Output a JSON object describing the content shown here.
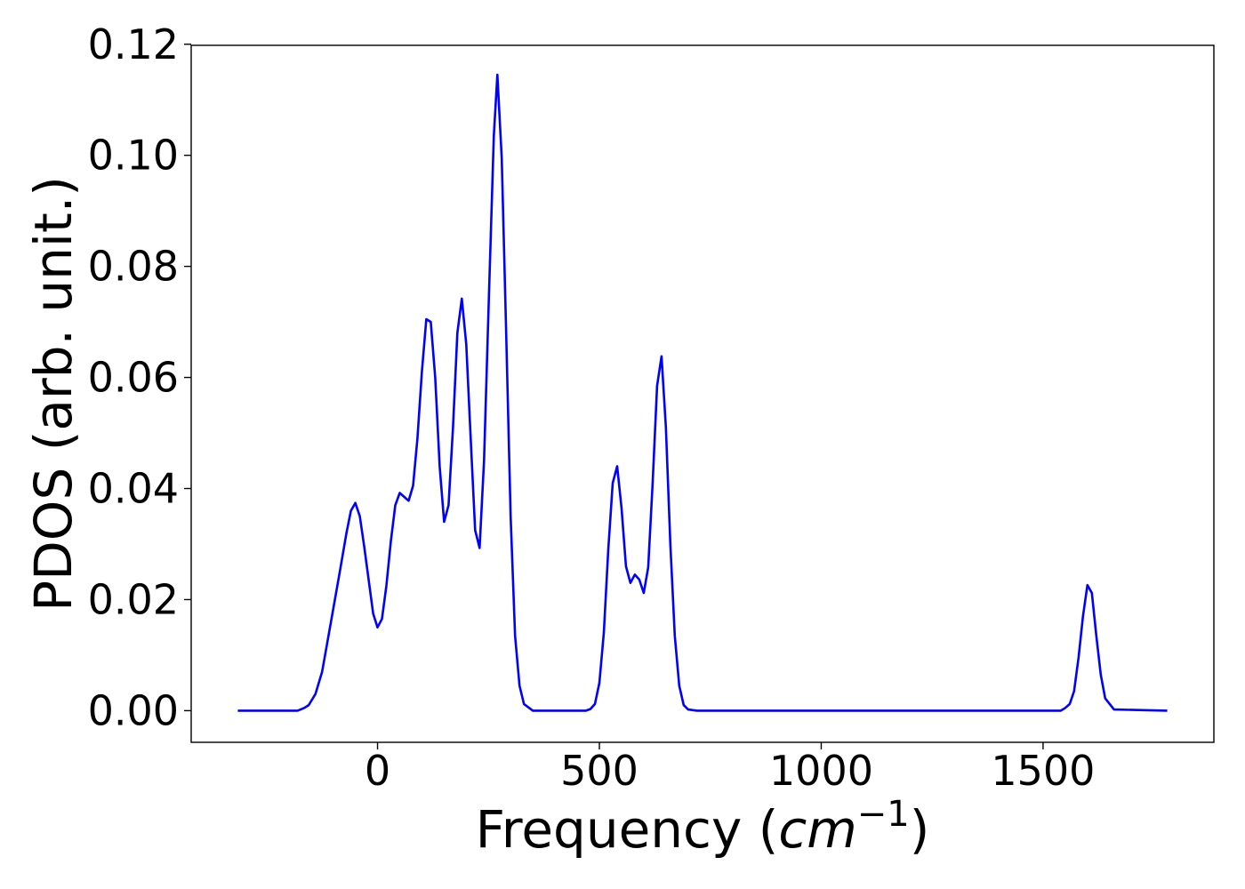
{
  "chart_data": {
    "type": "line",
    "title": "",
    "xlabel_main": "Frequency (",
    "xlabel_unit": "cm",
    "xlabel_exponent": "−1",
    "xlabel_close": ")",
    "ylabel": "PDOS (arb. unit.)",
    "xlim": [
      -420,
      1885
    ],
    "ylim": [
      -0.0057,
      0.1198
    ],
    "xticks": [
      0,
      500,
      1000,
      1500
    ],
    "xtick_labels": [
      "0",
      "500",
      "1000",
      "1500"
    ],
    "yticks": [
      0.0,
      0.02,
      0.04,
      0.06,
      0.08,
      0.1,
      0.12
    ],
    "ytick_labels": [
      "0.00",
      "0.02",
      "0.04",
      "0.06",
      "0.08",
      "0.10",
      "0.12"
    ],
    "grid": false,
    "line_color": "#0000ff",
    "series": [
      {
        "x": [
          -315,
          -180,
          -165,
          -155,
          -140,
          -125,
          -105,
          -85,
          -70,
          -60,
          -50,
          -40,
          -30,
          -20,
          -10,
          0,
          10,
          20,
          30,
          40,
          50,
          60,
          70,
          80,
          90,
          100,
          110,
          120,
          130,
          140,
          150,
          160,
          170,
          180,
          190,
          200,
          210,
          220,
          230,
          240,
          250,
          262,
          270,
          280,
          290,
          300,
          310,
          320,
          330,
          350,
          470,
          480,
          490,
          500,
          510,
          520,
          530,
          540,
          550,
          560,
          570,
          580,
          590,
          600,
          610,
          620,
          630,
          640,
          650,
          660,
          670,
          680,
          690,
          700,
          720,
          1540,
          1550,
          1560,
          1570,
          1580,
          1590,
          1600,
          1610,
          1620,
          1630,
          1640,
          1660,
          1780
        ],
        "y": [
          0.0,
          0.0,
          0.0005,
          0.001,
          0.003,
          0.007,
          0.016,
          0.025,
          0.032,
          0.036,
          0.0374,
          0.035,
          0.0295,
          0.0235,
          0.0175,
          0.015,
          0.0165,
          0.0225,
          0.0305,
          0.037,
          0.0392,
          0.0385,
          0.0378,
          0.0405,
          0.049,
          0.061,
          0.0705,
          0.07,
          0.06,
          0.044,
          0.034,
          0.037,
          0.051,
          0.068,
          0.0742,
          0.066,
          0.049,
          0.0325,
          0.0293,
          0.045,
          0.072,
          0.1035,
          0.1145,
          0.0995,
          0.068,
          0.035,
          0.0135,
          0.0045,
          0.0012,
          0.0,
          0.0,
          0.0003,
          0.0012,
          0.005,
          0.014,
          0.029,
          0.041,
          0.044,
          0.0365,
          0.026,
          0.023,
          0.0245,
          0.0236,
          0.0212,
          0.0258,
          0.041,
          0.0585,
          0.0638,
          0.051,
          0.03,
          0.0135,
          0.0045,
          0.001,
          0.0002,
          0.0,
          0.0,
          0.0005,
          0.0012,
          0.0035,
          0.0095,
          0.017,
          0.0226,
          0.0212,
          0.0135,
          0.0065,
          0.0022,
          0.0002,
          0.0
        ]
      }
    ]
  }
}
